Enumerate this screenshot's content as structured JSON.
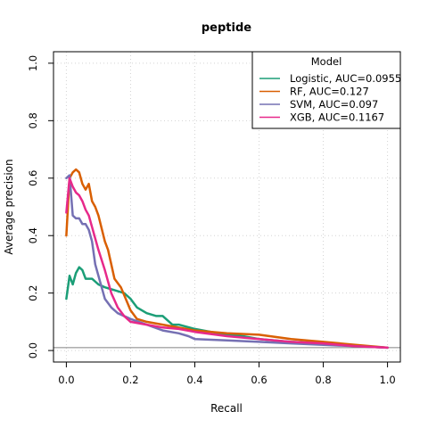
{
  "chart_data": {
    "type": "line",
    "title": "peptide",
    "xlabel": "Recall",
    "ylabel": "Average precision",
    "xlim": [
      0,
      1
    ],
    "ylim": [
      0,
      1
    ],
    "xticks": [
      0,
      0.2,
      0.4,
      0.6,
      0.8,
      1
    ],
    "xtick_labels": [
      "0.0",
      "0.2",
      "0.4",
      "0.6",
      "0.8",
      "1.0"
    ],
    "yticks": [
      0,
      0.2,
      0.4,
      0.6,
      0.8,
      1
    ],
    "ytick_labels": [
      "0.0",
      "0.2",
      "0.4",
      "0.6",
      "0.8",
      "1.0"
    ],
    "grid": true,
    "baseline": 0.01,
    "legend": {
      "title": "Model",
      "position": "top-right"
    },
    "series": [
      {
        "name": "Logistic, AUC=0.0955",
        "color": "#1b9e77",
        "x": [
          0.0,
          0.01,
          0.02,
          0.03,
          0.04,
          0.05,
          0.06,
          0.07,
          0.08,
          0.1,
          0.12,
          0.15,
          0.18,
          0.2,
          0.22,
          0.25,
          0.28,
          0.3,
          0.33,
          0.35,
          0.4,
          0.45,
          0.5,
          0.55,
          0.6,
          0.7,
          0.8,
          0.9,
          1.0
        ],
        "y": [
          0.18,
          0.26,
          0.23,
          0.27,
          0.29,
          0.28,
          0.25,
          0.25,
          0.25,
          0.23,
          0.22,
          0.21,
          0.2,
          0.18,
          0.15,
          0.13,
          0.12,
          0.12,
          0.09,
          0.09,
          0.075,
          0.065,
          0.055,
          0.05,
          0.04,
          0.03,
          0.025,
          0.015,
          0.01
        ]
      },
      {
        "name": "RF, AUC=0.127",
        "color": "#d95f02",
        "x": [
          0.0,
          0.01,
          0.02,
          0.03,
          0.04,
          0.05,
          0.06,
          0.07,
          0.08,
          0.09,
          0.1,
          0.12,
          0.13,
          0.15,
          0.17,
          0.2,
          0.22,
          0.25,
          0.3,
          0.35,
          0.4,
          0.5,
          0.6,
          0.7,
          0.8,
          0.9,
          1.0
        ],
        "y": [
          0.4,
          0.6,
          0.62,
          0.63,
          0.62,
          0.58,
          0.56,
          0.58,
          0.52,
          0.5,
          0.47,
          0.38,
          0.35,
          0.25,
          0.22,
          0.14,
          0.11,
          0.1,
          0.09,
          0.08,
          0.07,
          0.06,
          0.055,
          0.04,
          0.03,
          0.02,
          0.01
        ]
      },
      {
        "name": "SVM, AUC=0.097",
        "color": "#7570b3",
        "x": [
          0.0,
          0.01,
          0.02,
          0.03,
          0.04,
          0.05,
          0.06,
          0.07,
          0.08,
          0.09,
          0.1,
          0.12,
          0.14,
          0.16,
          0.2,
          0.25,
          0.3,
          0.35,
          0.38,
          0.4,
          0.5,
          0.6,
          0.7,
          0.8,
          0.9,
          1.0
        ],
        "y": [
          0.6,
          0.61,
          0.47,
          0.46,
          0.46,
          0.44,
          0.44,
          0.42,
          0.38,
          0.3,
          0.26,
          0.18,
          0.15,
          0.13,
          0.11,
          0.09,
          0.07,
          0.06,
          0.05,
          0.04,
          0.035,
          0.03,
          0.025,
          0.02,
          0.015,
          0.01
        ]
      },
      {
        "name": "XGB, AUC=0.1167",
        "color": "#e7298a",
        "x": [
          0.0,
          0.01,
          0.02,
          0.03,
          0.04,
          0.05,
          0.06,
          0.07,
          0.08,
          0.1,
          0.12,
          0.14,
          0.16,
          0.18,
          0.2,
          0.25,
          0.3,
          0.35,
          0.4,
          0.5,
          0.6,
          0.7,
          0.8,
          0.9,
          1.0
        ],
        "y": [
          0.48,
          0.6,
          0.57,
          0.55,
          0.54,
          0.52,
          0.49,
          0.47,
          0.43,
          0.35,
          0.28,
          0.2,
          0.15,
          0.12,
          0.1,
          0.09,
          0.08,
          0.075,
          0.065,
          0.05,
          0.04,
          0.03,
          0.025,
          0.015,
          0.01
        ]
      }
    ]
  }
}
